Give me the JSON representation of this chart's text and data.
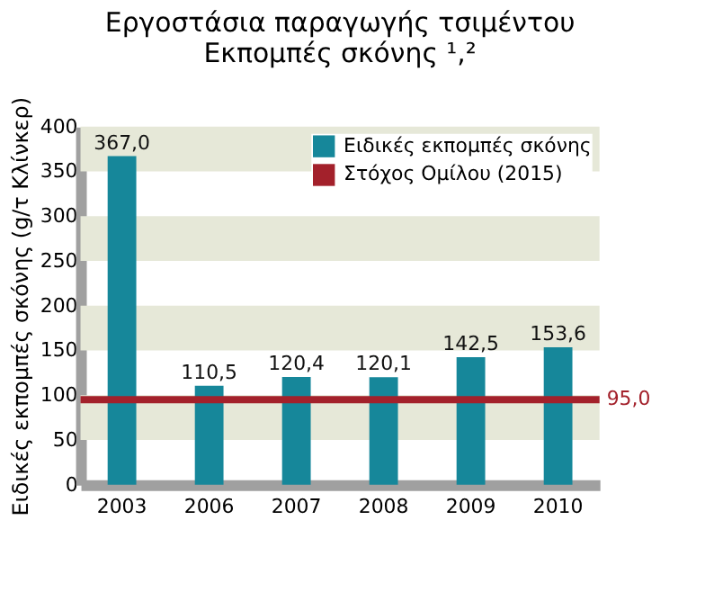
{
  "chart_data": {
    "type": "bar",
    "title": [
      "Εργοστάσια παραγωγής τσιμέντου",
      "Εκπομπές σκόνης ¹,²"
    ],
    "ylabel": "Ειδικές εκπομπές σκόνης (g/τ Κλίνκερ)",
    "categories": [
      "2003",
      "2006",
      "2007",
      "2008",
      "2009",
      "2010"
    ],
    "series": [
      {
        "name": "Ειδικές εκπομπές σκόνης",
        "color": "#16879a",
        "values": [
          367.0,
          110.5,
          120.4,
          120.1,
          142.5,
          153.6
        ],
        "value_labels": [
          "367,0",
          "110,5",
          "120,4",
          "120,1",
          "142,5",
          "153,6"
        ]
      }
    ],
    "ylim": [
      0,
      400
    ],
    "yticks": [
      0,
      50,
      100,
      150,
      200,
      250,
      300,
      350,
      400
    ],
    "ref_lines": [
      {
        "axis": "y",
        "value": 95,
        "label": "Στόχος Ομίλου (2015)",
        "color": "#a3212b"
      }
    ],
    "bands": [
      {
        "axis": "y",
        "from": 50,
        "to": 100,
        "color": "#e6e8d8"
      },
      {
        "axis": "y",
        "from": 150,
        "to": 200,
        "color": "#e6e8d8"
      },
      {
        "axis": "y",
        "from": 250,
        "to": 300,
        "color": "#e6e8d8"
      },
      {
        "axis": "y",
        "from": 350,
        "to": 400,
        "color": "#e6e8d8"
      }
    ],
    "annotations": [
      "95,0"
    ],
    "legend": "top right",
    "grid": false
  }
}
